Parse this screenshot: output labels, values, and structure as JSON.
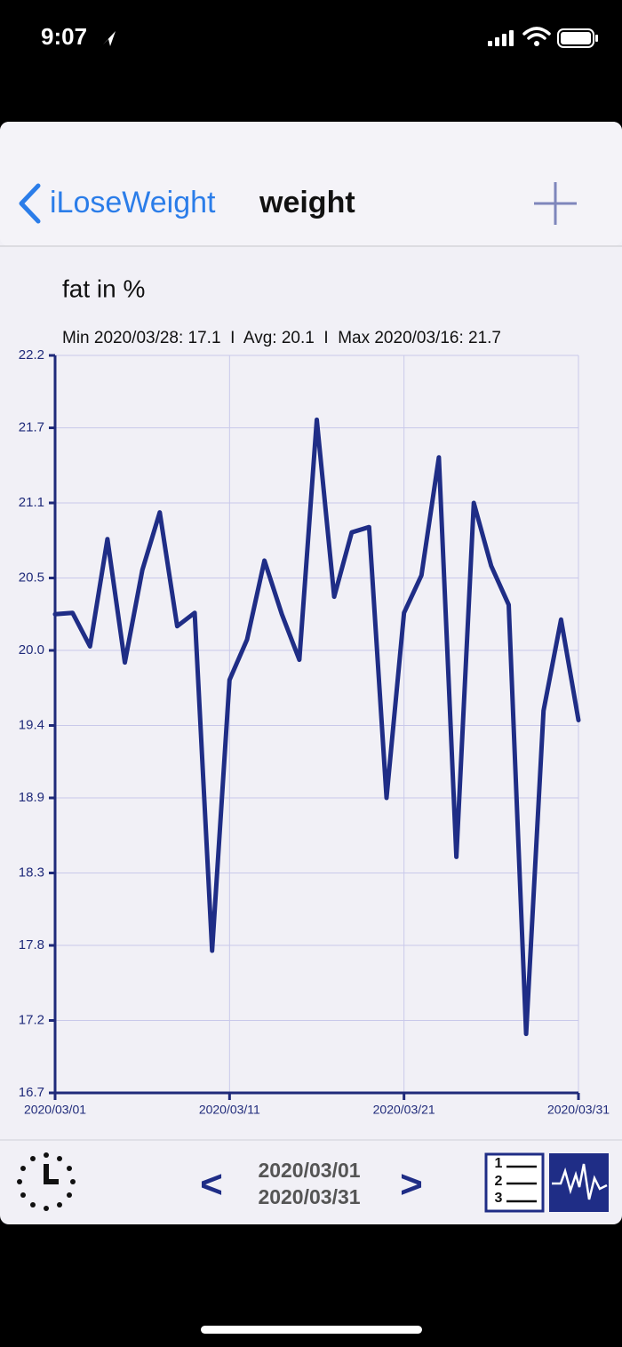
{
  "status_bar": {
    "time": "9:07"
  },
  "nav": {
    "back": "iLoseWeight",
    "title": "weight"
  },
  "chart_data": {
    "type": "line",
    "title": "fat in %",
    "subtitle": "Min 2020/03/28: 17.1  I  Avg: 20.1  I  Max 2020/03/16: 21.7",
    "x": [
      "2020/03/01",
      "2020/03/02",
      "2020/03/03",
      "2020/03/04",
      "2020/03/05",
      "2020/03/06",
      "2020/03/07",
      "2020/03/08",
      "2020/03/09",
      "2020/03/10",
      "2020/03/11",
      "2020/03/12",
      "2020/03/13",
      "2020/03/14",
      "2020/03/15",
      "2020/03/16",
      "2020/03/17",
      "2020/03/18",
      "2020/03/19",
      "2020/03/20",
      "2020/03/21",
      "2020/03/22",
      "2020/03/23",
      "2020/03/24",
      "2020/03/25",
      "2020/03/26",
      "2020/03/27",
      "2020/03/28",
      "2020/03/29",
      "2020/03/30",
      "2020/03/31"
    ],
    "values": [
      20.27,
      20.28,
      20.03,
      20.83,
      19.91,
      20.6,
      21.03,
      20.18,
      20.28,
      17.76,
      19.78,
      20.08,
      20.67,
      20.27,
      19.93,
      21.72,
      20.4,
      20.88,
      20.92,
      18.9,
      20.28,
      20.56,
      21.44,
      18.46,
      21.1,
      20.63,
      20.34,
      17.14,
      19.55,
      20.23,
      19.48
    ],
    "color": "#1f2d86",
    "xlim": [
      "2020/03/01",
      "2020/03/31"
    ],
    "xticks": [
      "2020/03/01",
      "2020/03/11",
      "2020/03/21",
      "2020/03/31"
    ],
    "ylim": [
      16.7,
      22.2
    ],
    "yticks": [
      16.7,
      {
        "value": 17.24,
        "label": "17.2"
      },
      17.8,
      {
        "value": 18.34,
        "label": "18.3"
      },
      18.9,
      {
        "value": 19.44,
        "label": "19.4"
      },
      {
        "value": 20,
        "label": "20.0"
      },
      {
        "value": 20.54,
        "label": "20.5"
      },
      21.1,
      {
        "value": 21.66,
        "label": "21.7"
      },
      22.2
    ],
    "grid": true
  },
  "toolbar": {
    "prev": "<",
    "range_start": "2020/03/01",
    "range_end": "2020/03/31",
    "next": ">",
    "list_icon_digits": [
      "1",
      "2",
      "3"
    ]
  }
}
